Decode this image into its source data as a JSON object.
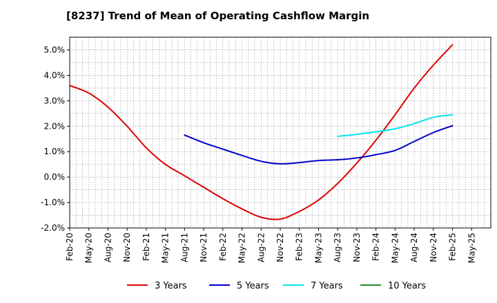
{
  "chart_data": {
    "type": "line",
    "title": "[8237]  Trend of Mean of Operating Cashflow Margin",
    "xlabel": "",
    "ylabel": "",
    "x_ticks": [
      "Feb-20",
      "May-20",
      "Aug-20",
      "Nov-20",
      "Feb-21",
      "May-21",
      "Aug-21",
      "Nov-21",
      "Feb-22",
      "May-22",
      "Aug-22",
      "Nov-22",
      "Feb-23",
      "May-23",
      "Aug-23",
      "Nov-23",
      "Feb-24",
      "May-24",
      "Aug-24",
      "Nov-24",
      "Feb-25",
      "May-25"
    ],
    "y_ticks": [
      "-2.0%",
      "-1.0%",
      "0.0%",
      "1.0%",
      "2.0%",
      "3.0%",
      "4.0%",
      "5.0%"
    ],
    "ylim": [
      -2.0,
      5.5
    ],
    "grid": true,
    "legend_position": "bottom",
    "series": [
      {
        "name": "3 Years",
        "color": "#dd0000",
        "x": [
          "Feb-20",
          "May-20",
          "Aug-20",
          "Nov-20",
          "Feb-21",
          "May-21",
          "Aug-21",
          "Nov-21",
          "Feb-22",
          "May-22",
          "Aug-22",
          "Nov-22",
          "Feb-23",
          "May-23",
          "Aug-23",
          "Nov-23",
          "Feb-24",
          "May-24",
          "Aug-24",
          "Nov-24",
          "Feb-25"
        ],
        "values": [
          3.6,
          3.3,
          2.75,
          2.0,
          1.15,
          0.5,
          0.05,
          -0.4,
          -0.85,
          -1.25,
          -1.58,
          -1.65,
          -1.35,
          -0.9,
          -0.25,
          0.55,
          1.45,
          2.45,
          3.5,
          4.4,
          5.2
        ]
      },
      {
        "name": "5 Years",
        "color": "#0000cc",
        "x": [
          "Aug-21",
          "Nov-21",
          "Feb-22",
          "May-22",
          "Aug-22",
          "Nov-22",
          "Feb-23",
          "May-23",
          "Aug-23",
          "Nov-23",
          "Feb-24",
          "May-24",
          "Aug-24",
          "Nov-24",
          "Feb-25"
        ],
        "values": [
          1.65,
          1.35,
          1.1,
          0.85,
          0.62,
          0.52,
          0.57,
          0.65,
          0.68,
          0.75,
          0.88,
          1.05,
          1.4,
          1.75,
          2.02
        ]
      },
      {
        "name": "7 Years",
        "color": "#00e5ee",
        "x": [
          "Aug-23",
          "Nov-23",
          "Feb-24",
          "May-24",
          "Aug-24",
          "Nov-24",
          "Feb-25"
        ],
        "values": [
          1.6,
          1.68,
          1.78,
          1.9,
          2.1,
          2.35,
          2.45
        ]
      },
      {
        "name": "10 Years",
        "color": "#228b22",
        "x": [],
        "values": []
      }
    ]
  }
}
